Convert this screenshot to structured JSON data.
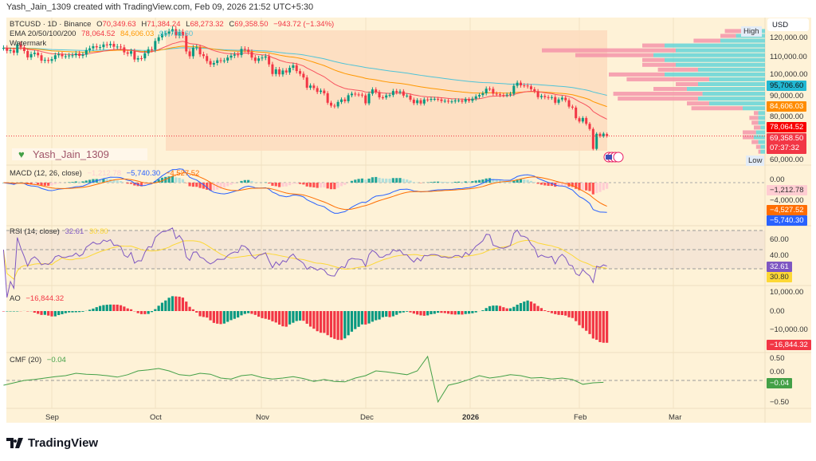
{
  "credit": "Yash_Jain_1309 created with TradingView.com, Feb 09, 2026 21:52 UTC+5:30",
  "legend": {
    "symbol": "BTCUSD · 1D · Binance",
    "o_label": "O",
    "o": "70,349.63",
    "h_label": "H",
    "h": "71,384.24",
    "l_label": "L",
    "l": "68,273.32",
    "c_label": "C",
    "c": "69,358.50",
    "change": "−943.72 (−1.34%)",
    "ema_title": "EMA 20/50/100/200",
    "ema20": "78,064.52",
    "ema50": "84,606.03",
    "ema100": "95,706.60",
    "watermark_title": "Watermark"
  },
  "watermark_text": "Yash_Jain_1309",
  "watermark_icon": "green-heart-icon",
  "panes": {
    "macd": {
      "title": "MACD (12, 26, close)",
      "hist": "−1,212.78",
      "macd": "−5,740.30",
      "signal": "−4,527.52"
    },
    "rsi": {
      "title": "RSI (14, close)",
      "rsi": "32.61",
      "ma": "30.80"
    },
    "ao": {
      "title": "AO",
      "value": "−16,844.32"
    },
    "cmf": {
      "title": "CMF (20)",
      "value": "−0.04"
    }
  },
  "price_axis": {
    "currency": "USD",
    "high_label": "High",
    "low_label": "Low",
    "ticks": [
      "120,000.00",
      "110,000.00",
      "100,000.00",
      "90,000.00",
      "80,000.00",
      "60,000.00"
    ],
    "tags": {
      "ema100": "95,706.60",
      "ema50": "84,606.03",
      "ema20": "78,064.52",
      "last": "69,358.50",
      "countdown": "07:37:32"
    }
  },
  "macd_axis": {
    "ticks": [
      "0.00",
      "−4,000.00"
    ],
    "tags": {
      "hist": "−1,212.78",
      "signal": "−4,527.52",
      "macd": "−5,740.30"
    }
  },
  "rsi_axis": {
    "ticks": [
      "60.00",
      "40.00"
    ],
    "tags": {
      "rsi": "32.61",
      "ma": "30.80"
    }
  },
  "ao_axis": {
    "ticks": [
      "10,000.00",
      "0.00",
      "−10,000.00"
    ],
    "tags": {
      "ao": "−16,844.32"
    }
  },
  "cmf_axis": {
    "ticks": [
      "0.50",
      "0.00",
      "−0.50"
    ],
    "tags": {
      "cmf": "−0.04"
    }
  },
  "time_axis": [
    "Sep",
    "Oct",
    "Nov",
    "Dec",
    "2026",
    "Feb",
    "Mar"
  ],
  "brand": "TradingView",
  "colors": {
    "up": "#089981",
    "down": "#f23645",
    "ema20": "#f7525f",
    "ema50": "#ff9800",
    "ema100": "#4fc3d7",
    "background": "#fef2d7",
    "macd": "#2962ff",
    "signal": "#ff6d00",
    "rsi": "#7e57c2",
    "rsi_ma": "#fdd835",
    "cmf": "#43a047"
  },
  "chart_data": {
    "type": "candlestick",
    "symbol": "BTCUSD",
    "interval": "1D",
    "x_ticks": [
      "Sep",
      "Oct",
      "Nov",
      "Dec",
      "2026",
      "Feb",
      "Mar"
    ],
    "ylim": [
      60000,
      125000
    ],
    "closes": [
      115000,
      113500,
      113800,
      112500,
      116900,
      115300,
      113400,
      110100,
      111800,
      112500,
      111200,
      108400,
      108800,
      108300,
      109200,
      111200,
      111700,
      110700,
      110700,
      111100,
      111200,
      112100,
      110900,
      111500,
      113900,
      114800,
      115900,
      115300,
      115400,
      116800,
      116400,
      117100,
      115600,
      115700,
      115300,
      112700,
      112000,
      113300,
      109000,
      109700,
      109600,
      112200,
      114300,
      114100,
      118600,
      120500,
      122200,
      122400,
      123500,
      124700,
      121400,
      123300,
      121500,
      113200,
      110700,
      115100,
      115300,
      111700,
      110800,
      108200,
      106400,
      107200,
      108600,
      108400,
      108500,
      110000,
      111000,
      111600,
      111300,
      114500,
      114100,
      112900,
      110000,
      108300,
      109600,
      110000,
      110600,
      106500,
      101500,
      103900,
      101300,
      103300,
      102300,
      104700,
      106000,
      103000,
      101600,
      99700,
      94400,
      95500,
      94200,
      92200,
      92900,
      91500,
      86600,
      85100,
      84700,
      87000,
      88300,
      87400,
      90500,
      91300,
      90900,
      90800,
      90400,
      86300,
      91300,
      93500,
      92100,
      89400,
      89300,
      90400,
      90600,
      92700,
      92000,
      92500,
      90300,
      90300,
      88200,
      86400,
      87900,
      86200,
      88300,
      88100,
      88600,
      88600,
      88300,
      87500,
      87600,
      87200,
      87300,
      87800,
      87800,
      87200,
      88400,
      87600,
      88700,
      89900,
      90600,
      91500,
      93900,
      93800,
      91300,
      91000,
      90600,
      90500,
      90800,
      91200,
      95400,
      97000,
      95600,
      95500,
      95100,
      93600,
      92600,
      89500,
      90100,
      89500,
      89200,
      89500,
      86600,
      88300,
      89200,
      87900,
      84600,
      84100,
      78600,
      76900,
      78700,
      75700,
      73000,
      62700,
      70500,
      69300,
      70600,
      69359
    ],
    "last_ohlc": {
      "open": 70349.63,
      "high": 71384.24,
      "low": 68273.32,
      "close": 69358.5
    },
    "ema_periods": [
      20,
      50,
      100
    ],
    "volume_profile": [
      [
        122500,
        0.18,
        0.1
      ],
      [
        120000,
        0.2,
        0.13
      ],
      [
        117500,
        0.32,
        0.2
      ],
      [
        115000,
        0.55,
        0.45
      ],
      [
        112500,
        1.0,
        0.4
      ],
      [
        110000,
        0.85,
        0.5
      ],
      [
        107500,
        0.55,
        0.45
      ],
      [
        105000,
        0.55,
        0.4
      ],
      [
        102500,
        0.48,
        0.3
      ],
      [
        100000,
        0.7,
        0.45
      ],
      [
        97500,
        0.62,
        0.25
      ],
      [
        95000,
        0.4,
        0.3
      ],
      [
        92500,
        0.5,
        0.35
      ],
      [
        90000,
        0.68,
        0.28
      ],
      [
        87500,
        0.66,
        0.3
      ],
      [
        85000,
        0.35,
        0.25
      ],
      [
        82500,
        0.33,
        0.1
      ],
      [
        80000,
        0.05,
        0.03
      ],
      [
        77500,
        0.07,
        0.03
      ],
      [
        75000,
        0.06,
        0.03
      ],
      [
        72500,
        0.05,
        0.02
      ],
      [
        70000,
        0.1,
        0.04
      ],
      [
        67500,
        0.1,
        0.05
      ],
      [
        65000,
        0.06,
        0.03
      ],
      [
        62500,
        0.04,
        0.02
      ],
      [
        60000,
        0.03,
        0.02
      ]
    ],
    "cmf_every_3_days": [
      -0.1,
      -0.05,
      0,
      0.02,
      0.05,
      0.08,
      0.1,
      0.15,
      0.13,
      0.12,
      0.1,
      0.07,
      0.12,
      0.2,
      0.22,
      0.25,
      0.2,
      0.12,
      0.1,
      0.15,
      0.13,
      0.05,
      0.03,
      0.1,
      0.12,
      0.06,
      0.03,
      0.05,
      0.08,
      0.04,
      -0.02,
      0.02,
      -0.02,
      -0.03,
      0.05,
      0.1,
      0.2,
      0.18,
      0.15,
      0.12,
      0.2,
      0.5,
      -0.45,
      -0.1,
      -0.05,
      0.02,
      0.1,
      0.05,
      0.08,
      0.12,
      0.1,
      0.05,
      0.06,
      0.03,
      0.05,
      0.02,
      -0.08,
      -0.05,
      -0.04
    ],
    "rsi_bands": [
      70,
      50,
      30
    ]
  }
}
